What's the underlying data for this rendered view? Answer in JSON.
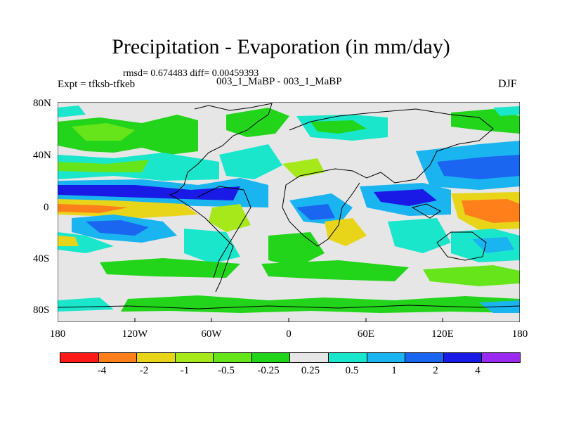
{
  "title": "Precipitation - Evaporation (in mm/day)",
  "stats": "rmsd= 0.674483 diff= 0.00459393",
  "experiment": "Expt = tfksb-tfkeb",
  "cases": "003_1_MaBP - 003_1_MaBP",
  "season": "DJF",
  "lat_labels": [
    "80N",
    "40N",
    "0",
    "40S",
    "80S"
  ],
  "lon_labels": [
    "180",
    "120W",
    "60W",
    "0",
    "60E",
    "120E",
    "180"
  ],
  "colorbar": {
    "colors": [
      "#ff1a1a",
      "#ff7f1a",
      "#e8d51a",
      "#a6e81a",
      "#66e61a",
      "#22d41a",
      "#e6e6e6",
      "#1ae6cc",
      "#1ab4f0",
      "#1a66f0",
      "#1a1ae6",
      "#9a2af0"
    ],
    "labels": [
      "-4",
      "-2",
      "-1",
      "-0.5",
      "-0.25",
      "0.25",
      "0.5",
      "1",
      "2",
      "4"
    ]
  },
  "colors": {
    "background_field": "#e6e6e6",
    "coastline": "#000000"
  }
}
